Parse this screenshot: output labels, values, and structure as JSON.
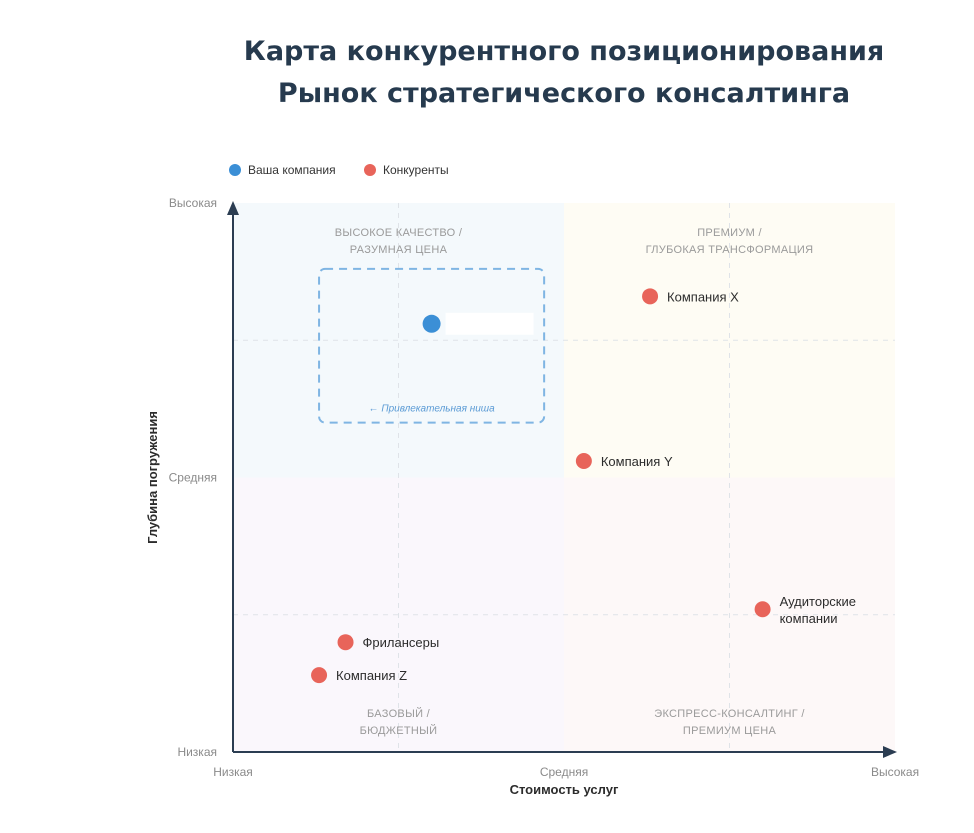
{
  "chart_data": {
    "type": "scatter",
    "title_lines": [
      "Карта конкурентного позиционирования",
      "Рынок стратегического консалтинга"
    ],
    "xlabel": "Стоимость услуг",
    "ylabel": "Глубина погружения",
    "xlim": [
      0,
      100
    ],
    "ylim": [
      0,
      100
    ],
    "x_ticks": [
      {
        "value": 0,
        "label": "Низкая"
      },
      {
        "value": 50,
        "label": "Средняя"
      },
      {
        "value": 100,
        "label": "Высокая"
      }
    ],
    "y_ticks": [
      {
        "value": 0,
        "label": "Низкая"
      },
      {
        "value": 50,
        "label": "Средняя"
      },
      {
        "value": 100,
        "label": "Высокая"
      }
    ],
    "legend": [
      {
        "name": "Ваша компания",
        "color": "#3b8fd6"
      },
      {
        "name": "Конкуренты",
        "color": "#e8645a"
      }
    ],
    "legend_position": "top-left",
    "quadrants": [
      {
        "position": "top-left",
        "lines": [
          "ВЫСОКОЕ КАЧЕСТВО /",
          "РАЗУМНАЯ ЦЕНА"
        ],
        "color": "#f4f9fc"
      },
      {
        "position": "top-right",
        "lines": [
          "ПРЕМИУМ /",
          "ГЛУБОКАЯ ТРАНСФОРМАЦИЯ"
        ],
        "color": "#fefcf4"
      },
      {
        "position": "bottom-left",
        "lines": [
          "БАЗОВЫЙ /",
          "БЮДЖЕТНЫЙ"
        ],
        "color": "#faf7fc"
      },
      {
        "position": "bottom-right",
        "lines": [
          "ЭКСПРЕСС-КОНСАЛТИНГ /",
          "ПРЕМИУМ ЦЕНА"
        ],
        "color": "#fdf8f8"
      }
    ],
    "niche": {
      "label": "← Привлекательная ниша",
      "x_range": [
        13,
        47
      ],
      "y_range": [
        60,
        88
      ],
      "color": "#7fb5e3"
    },
    "points": [
      {
        "name": "Ваша компания",
        "lines": [
          ""
        ],
        "x": 30,
        "y": 78,
        "series": "own"
      },
      {
        "name": "Компания X",
        "lines": [
          "Компания X"
        ],
        "x": 63,
        "y": 83,
        "series": "competitor"
      },
      {
        "name": "Компания Y",
        "lines": [
          "Компания Y"
        ],
        "x": 53,
        "y": 53,
        "series": "competitor"
      },
      {
        "name": "Аудиторские компании",
        "lines": [
          "Аудиторские",
          "компании"
        ],
        "x": 80,
        "y": 26,
        "series": "competitor"
      },
      {
        "name": "Фрилансеры",
        "lines": [
          "Фрилансеры"
        ],
        "x": 17,
        "y": 20,
        "series": "competitor"
      },
      {
        "name": "Компания Z",
        "lines": [
          "Компания Z"
        ],
        "x": 13,
        "y": 14,
        "series": "competitor"
      }
    ]
  }
}
